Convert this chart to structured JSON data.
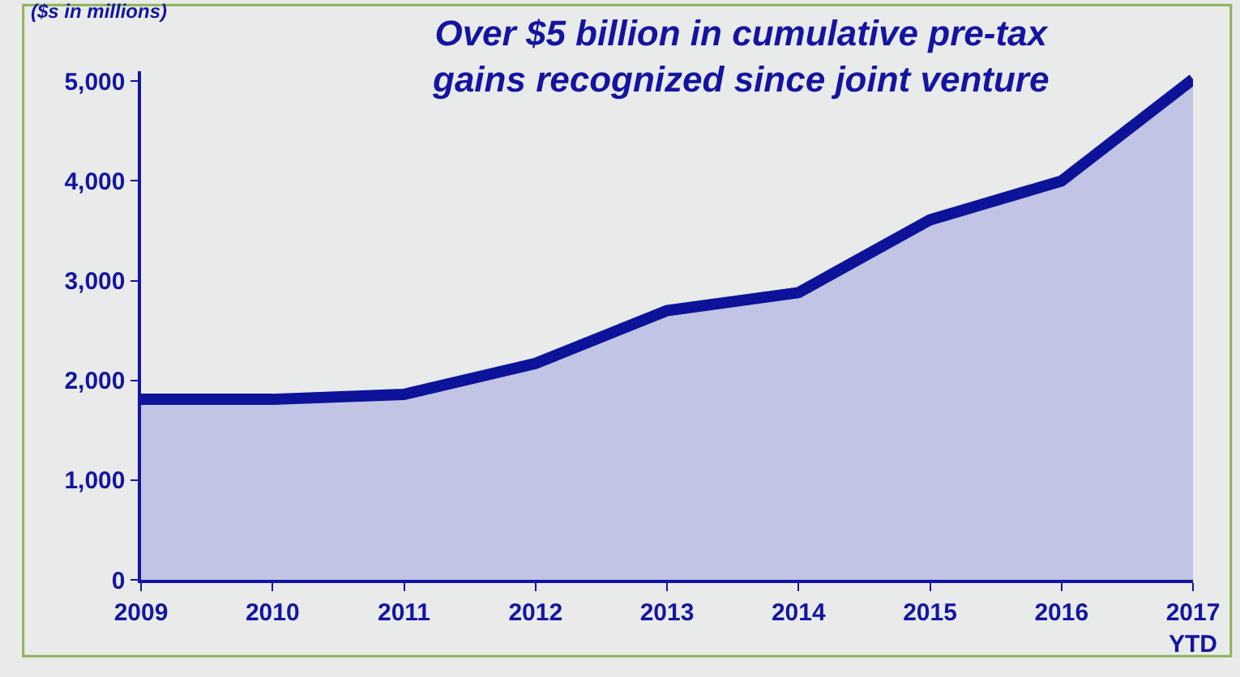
{
  "chart_data": {
    "type": "area",
    "title": "Over $5 billion in cumulative pre-tax\ngains recognized since joint venture",
    "ylabel": "($s in millions)",
    "categories": [
      "2009",
      "2010",
      "2011",
      "2012",
      "2013",
      "2014",
      "2015",
      "2016",
      "2017\nYTD"
    ],
    "series": [
      {
        "color": "#0c1399",
        "values": [
          1810,
          1810,
          1860,
          2170,
          2700,
          2880,
          3610,
          4000,
          5020
        ]
      }
    ],
    "ylim": [
      0,
      5100
    ],
    "yticks": [
      0,
      {
        "value": 1000,
        "label": "1,000"
      },
      {
        "value": 2000,
        "label": "2,000"
      },
      {
        "value": 3000,
        "label": "3,000"
      },
      {
        "value": 4000,
        "label": "4,000"
      },
      {
        "value": 5000,
        "label": "5,000"
      }
    ],
    "grid": false,
    "legend": false,
    "marker": "none",
    "line_style": "solid"
  }
}
